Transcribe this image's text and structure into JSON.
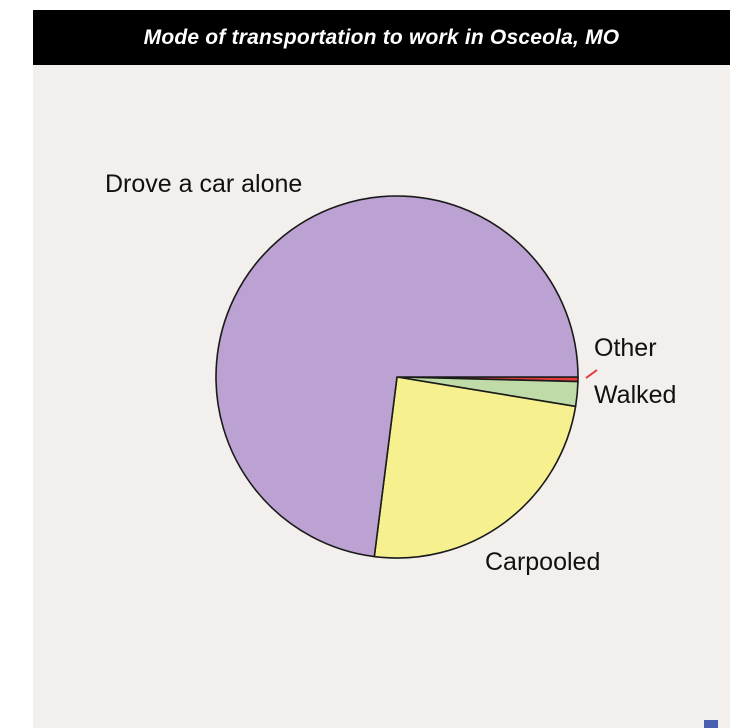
{
  "chart_data": {
    "type": "pie",
    "title": "Mode of transportation to work in Osceola, MO",
    "slices": [
      {
        "label": "Drove a car alone",
        "value": 73.0,
        "color": "#bba2d2"
      },
      {
        "label": "Carpooled",
        "value": 24.4,
        "color": "#f7f08e"
      },
      {
        "label": "Walked",
        "value": 2.2,
        "color": "#bfdca8"
      },
      {
        "label": "Other",
        "value": 0.4,
        "color": "#e23a3a"
      }
    ]
  },
  "colors": {
    "title_bar": "#000000",
    "title_text": "#ffffff",
    "background": "#f2efec",
    "outline": "#1a1a1a"
  }
}
